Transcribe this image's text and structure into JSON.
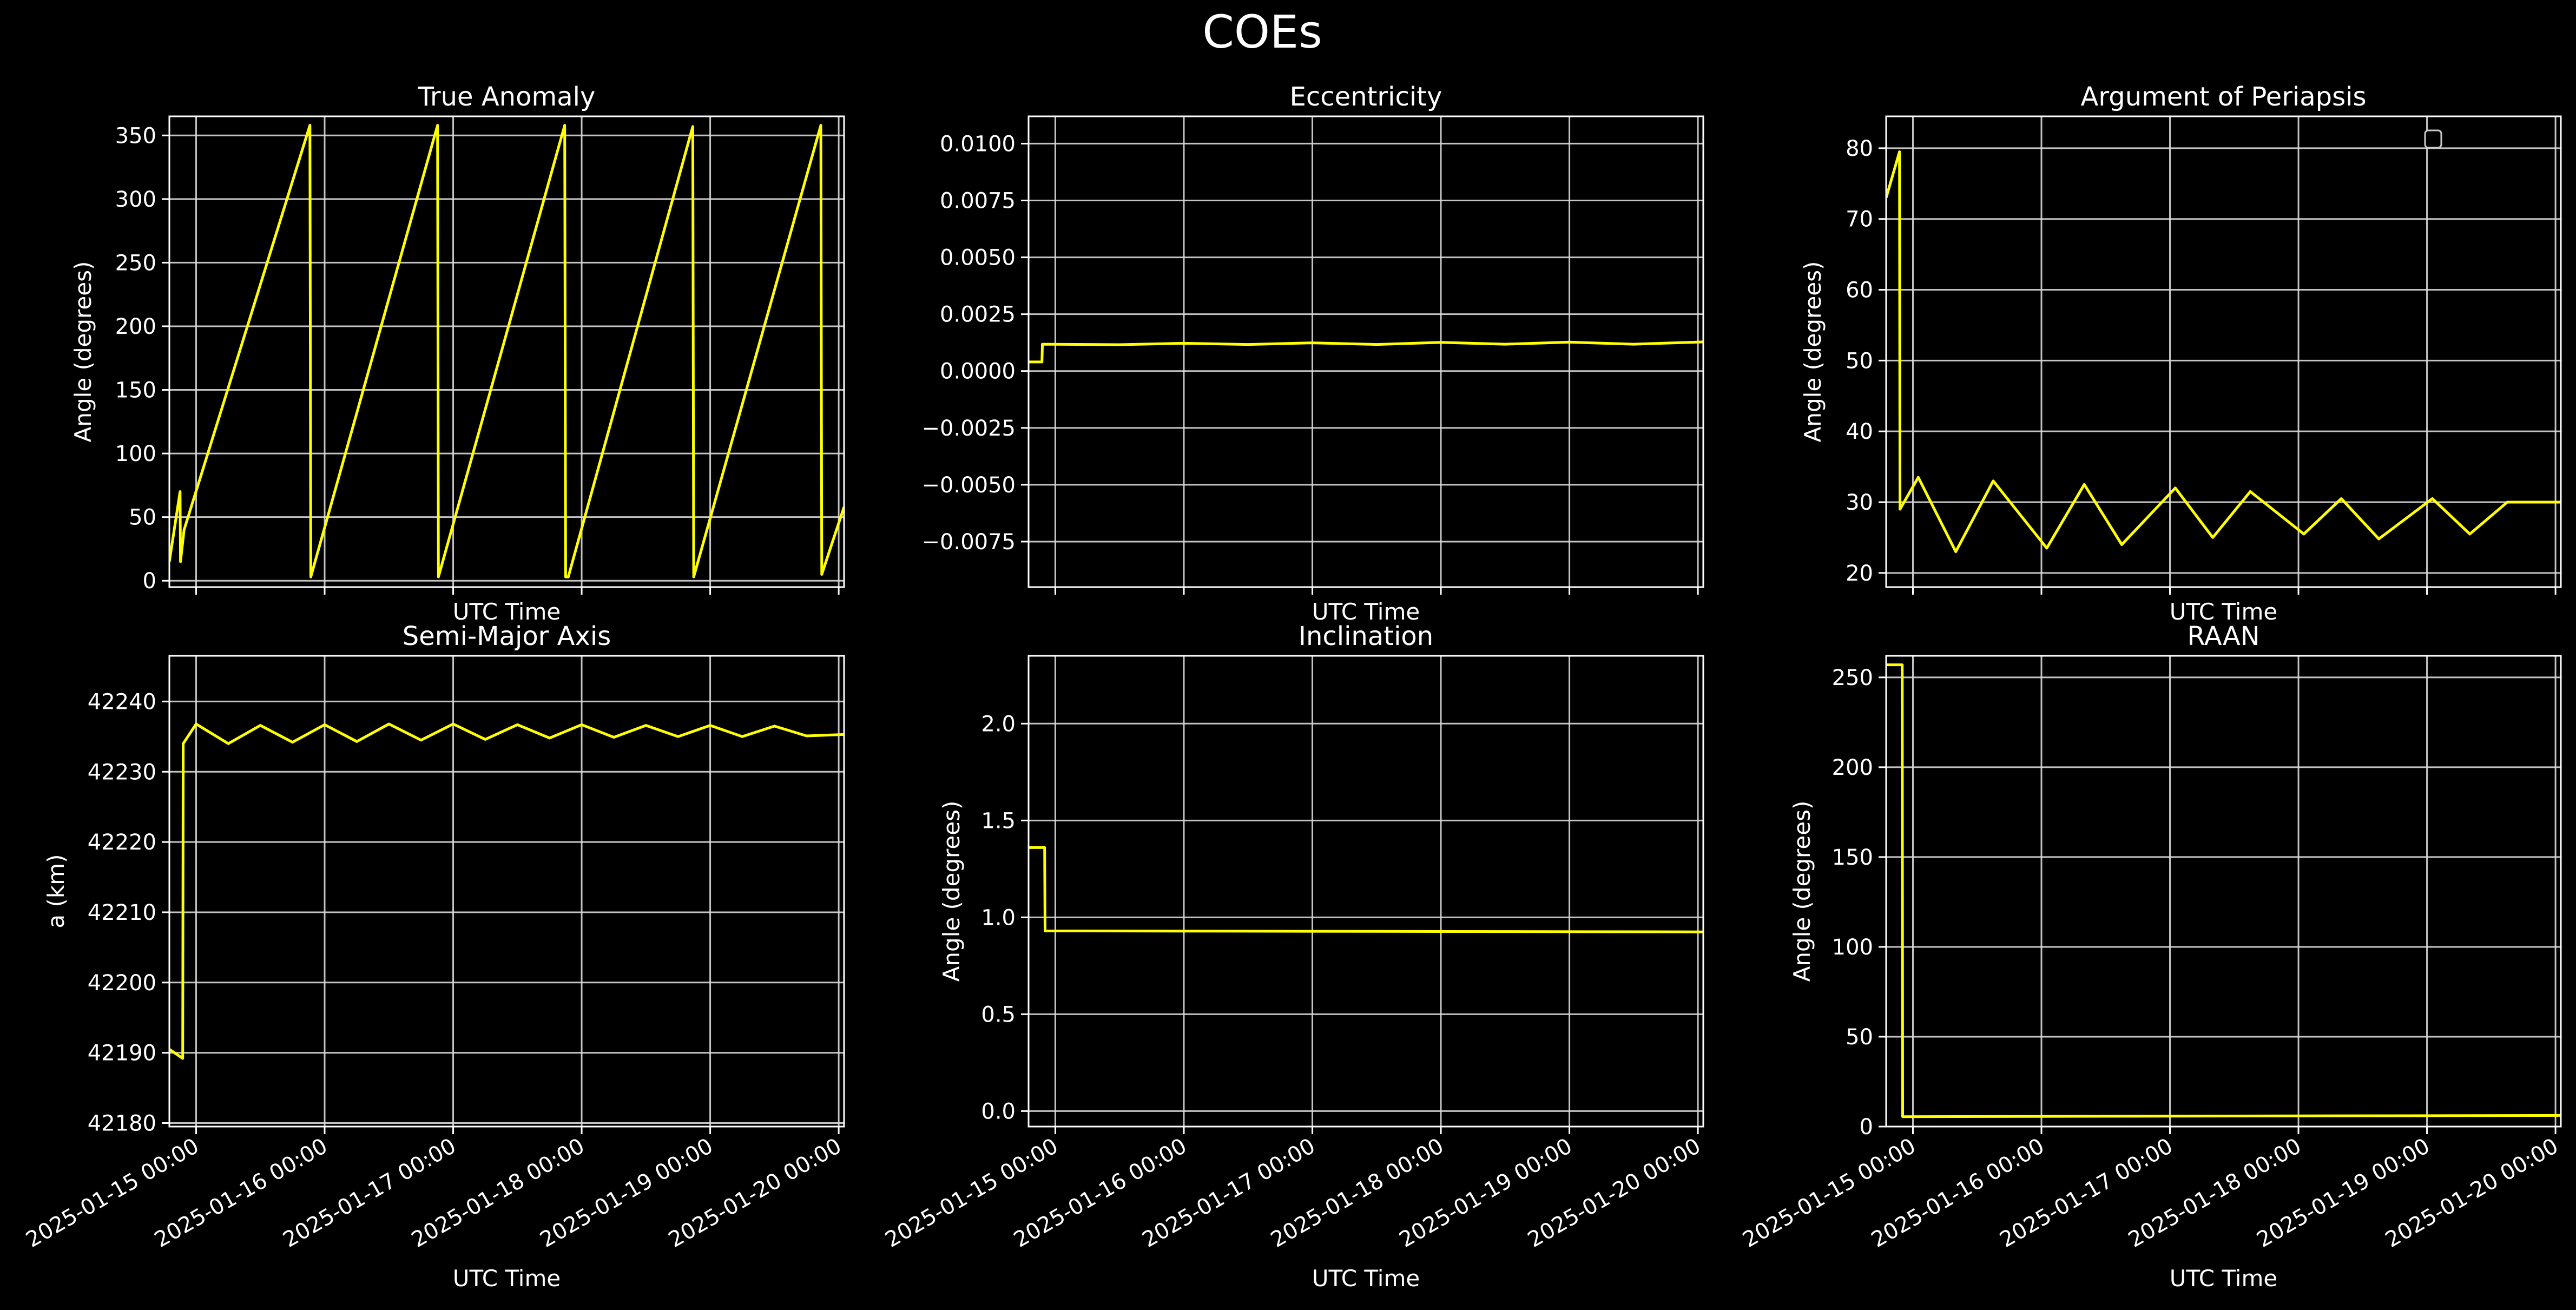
{
  "figure": {
    "title": "COEs"
  },
  "colors": {
    "background": "#000000",
    "series": "#ffff00",
    "text": "#ffffff",
    "grid": "#d9d9d9"
  },
  "chart_data": [
    {
      "id": "true-anomaly",
      "type": "line",
      "title": "True Anomaly",
      "xlabel": "UTC Time",
      "ylabel": "Angle (degrees)",
      "xlim": [
        "2025-01-14 19:00",
        "2025-01-20 01:00"
      ],
      "ylim": [
        -5,
        365
      ],
      "yticks": [
        0,
        50,
        100,
        150,
        200,
        250,
        300,
        350
      ],
      "yticklabels": [
        "0",
        "50",
        "100",
        "150",
        "200",
        "250",
        "300",
        "350"
      ],
      "xticks": [
        "2025-01-15 00:00",
        "2025-01-16 00:00",
        "2025-01-17 00:00",
        "2025-01-18 00:00",
        "2025-01-19 00:00",
        "2025-01-20 00:00"
      ],
      "xticklabels_shown": false,
      "grid": true,
      "series": [
        {
          "x": [
            "2025-01-14 19:00",
            "2025-01-14 21:00",
            "2025-01-14 21:05",
            "2025-01-14 21:45",
            "2025-01-15 21:15",
            "2025-01-15 21:25",
            "2025-01-16 21:05",
            "2025-01-16 21:15",
            "2025-01-17 20:50",
            "2025-01-17 21:00",
            "2025-01-17 21:30",
            "2025-01-18 20:45",
            "2025-01-18 20:55",
            "2025-01-19 20:40",
            "2025-01-19 20:50",
            "2025-01-20 01:00"
          ],
          "y": [
            15,
            70,
            15,
            40,
            358,
            3,
            358,
            3,
            358,
            3,
            3,
            357,
            3,
            358,
            5,
            58
          ]
        }
      ]
    },
    {
      "id": "eccentricity",
      "type": "line",
      "title": "Eccentricity",
      "xlabel": "UTC Time",
      "ylabel": "",
      "xlim": [
        "2025-01-14 19:00",
        "2025-01-20 01:00"
      ],
      "ylim": [
        -0.0095,
        0.0112
      ],
      "yticks": [
        -0.0075,
        -0.005,
        -0.0025,
        0.0,
        0.0025,
        0.005,
        0.0075,
        0.01
      ],
      "yticklabels": [
        "−0.0075",
        "−0.0050",
        "−0.0025",
        "0.0000",
        "0.0025",
        "0.0050",
        "0.0075",
        "0.0100"
      ],
      "xticks": [
        "2025-01-15 00:00",
        "2025-01-16 00:00",
        "2025-01-17 00:00",
        "2025-01-18 00:00",
        "2025-01-19 00:00",
        "2025-01-20 00:00"
      ],
      "xticklabels_shown": false,
      "grid": true,
      "series": [
        {
          "x": [
            "2025-01-14 19:00",
            "2025-01-14 21:30",
            "2025-01-14 21:35",
            "2025-01-15 12:00",
            "2025-01-16 00:00",
            "2025-01-16 12:00",
            "2025-01-17 00:00",
            "2025-01-17 12:00",
            "2025-01-18 00:00",
            "2025-01-18 12:00",
            "2025-01-19 00:00",
            "2025-01-19 12:00",
            "2025-01-20 01:00"
          ],
          "y": [
            0.0004,
            0.0004,
            0.00118,
            0.00116,
            0.00122,
            0.00117,
            0.00124,
            0.00117,
            0.00126,
            0.00118,
            0.00127,
            0.00118,
            0.00128
          ]
        }
      ]
    },
    {
      "id": "argument-of-periapsis",
      "type": "line",
      "title": "Argument of Periapsis",
      "xlabel": "UTC Time",
      "ylabel": "Angle (degrees)",
      "xlim": [
        "2025-01-14 19:00",
        "2025-01-20 01:00"
      ],
      "ylim": [
        18,
        84.5
      ],
      "yticks": [
        20,
        30,
        40,
        50,
        60,
        70,
        80
      ],
      "yticklabels": [
        "20",
        "30",
        "40",
        "50",
        "60",
        "70",
        "80"
      ],
      "xticks": [
        "2025-01-15 00:00",
        "2025-01-16 00:00",
        "2025-01-17 00:00",
        "2025-01-18 00:00",
        "2025-01-19 00:00",
        "2025-01-20 00:00"
      ],
      "xticklabels_shown": false,
      "grid": true,
      "legend": "top-right (empty)",
      "series": [
        {
          "x": [
            "2025-01-14 19:00",
            "2025-01-14 21:30",
            "2025-01-14 21:35",
            "2025-01-15 01:00",
            "2025-01-15 08:00",
            "2025-01-15 15:00",
            "2025-01-16 01:00",
            "2025-01-16 08:00",
            "2025-01-16 15:00",
            "2025-01-17 01:00",
            "2025-01-17 08:00",
            "2025-01-17 15:00",
            "2025-01-18 01:00",
            "2025-01-18 08:00",
            "2025-01-18 15:00",
            "2025-01-19 01:00",
            "2025-01-19 08:00",
            "2025-01-19 15:00",
            "2025-01-20 01:00"
          ],
          "y": [
            73,
            79.5,
            29,
            33.5,
            23,
            33,
            23.5,
            32.5,
            24,
            32,
            25,
            31.5,
            25.5,
            30.5,
            24.8,
            30.5,
            25.5,
            30,
            30
          ]
        }
      ]
    },
    {
      "id": "semi-major-axis",
      "type": "line",
      "title": "Semi-Major Axis",
      "xlabel": "UTC Time",
      "ylabel": "a (km)",
      "xlim": [
        "2025-01-14 19:00",
        "2025-01-20 01:00"
      ],
      "ylim": [
        42179.5,
        42246.5
      ],
      "yticks": [
        42180,
        42190,
        42200,
        42210,
        42220,
        42230,
        42240
      ],
      "yticklabels": [
        "42180",
        "42190",
        "42200",
        "42210",
        "42220",
        "42230",
        "42240"
      ],
      "xticks": [
        "2025-01-15 00:00",
        "2025-01-16 00:00",
        "2025-01-17 00:00",
        "2025-01-18 00:00",
        "2025-01-19 00:00",
        "2025-01-20 00:00"
      ],
      "xticklabels": [
        "2025-01-15 00:00",
        "2025-01-16 00:00",
        "2025-01-17 00:00",
        "2025-01-18 00:00",
        "2025-01-19 00:00",
        "2025-01-20 00:00"
      ],
      "xticklabels_shown": true,
      "grid": true,
      "series": [
        {
          "x": [
            "2025-01-14 19:00",
            "2025-01-14 21:30",
            "2025-01-14 21:35",
            "2025-01-15 00:00",
            "2025-01-15 06:00",
            "2025-01-15 12:00",
            "2025-01-15 18:00",
            "2025-01-16 00:00",
            "2025-01-16 06:00",
            "2025-01-16 12:00",
            "2025-01-16 18:00",
            "2025-01-17 00:00",
            "2025-01-17 06:00",
            "2025-01-17 12:00",
            "2025-01-17 18:00",
            "2025-01-18 00:00",
            "2025-01-18 06:00",
            "2025-01-18 12:00",
            "2025-01-18 18:00",
            "2025-01-19 00:00",
            "2025-01-19 06:00",
            "2025-01-19 12:00",
            "2025-01-19 18:00",
            "2025-01-20 01:00"
          ],
          "y": [
            42190.5,
            42189.2,
            42234,
            42236.8,
            42234,
            42236.6,
            42234.2,
            42236.7,
            42234.3,
            42236.8,
            42234.5,
            42236.8,
            42234.6,
            42236.7,
            42234.8,
            42236.7,
            42234.9,
            42236.6,
            42235,
            42236.6,
            42235,
            42236.5,
            42235.1,
            42235.3
          ]
        }
      ]
    },
    {
      "id": "inclination",
      "type": "line",
      "title": "Inclination",
      "xlabel": "UTC Time",
      "ylabel": "Angle (degrees)",
      "xlim": [
        "2025-01-14 19:00",
        "2025-01-20 01:00"
      ],
      "ylim": [
        -0.08,
        2.35
      ],
      "yticks": [
        0.0,
        0.5,
        1.0,
        1.5,
        2.0
      ],
      "yticklabels": [
        "0.0",
        "0.5",
        "1.0",
        "1.5",
        "2.0"
      ],
      "xticks": [
        "2025-01-15 00:00",
        "2025-01-16 00:00",
        "2025-01-17 00:00",
        "2025-01-18 00:00",
        "2025-01-19 00:00",
        "2025-01-20 00:00"
      ],
      "xticklabels": [
        "2025-01-15 00:00",
        "2025-01-16 00:00",
        "2025-01-17 00:00",
        "2025-01-18 00:00",
        "2025-01-19 00:00",
        "2025-01-20 00:00"
      ],
      "xticklabels_shown": true,
      "grid": true,
      "series": [
        {
          "x": [
            "2025-01-14 19:00",
            "2025-01-14 22:00",
            "2025-01-14 22:05",
            "2025-01-20 01:00"
          ],
          "y": [
            1.36,
            1.36,
            0.93,
            0.925
          ]
        }
      ]
    },
    {
      "id": "raan",
      "type": "line",
      "title": "RAAN",
      "xlabel": "UTC Time",
      "ylabel": "Angle (degrees)",
      "xlim": [
        "2025-01-14 19:00",
        "2025-01-20 01:00"
      ],
      "ylim": [
        0,
        262
      ],
      "yticks": [
        0,
        50,
        100,
        150,
        200,
        250
      ],
      "yticklabels": [
        "0",
        "50",
        "100",
        "150",
        "200",
        "250"
      ],
      "xticks": [
        "2025-01-15 00:00",
        "2025-01-16 00:00",
        "2025-01-17 00:00",
        "2025-01-18 00:00",
        "2025-01-19 00:00",
        "2025-01-20 00:00"
      ],
      "xticklabels": [
        "2025-01-15 00:00",
        "2025-01-16 00:00",
        "2025-01-17 00:00",
        "2025-01-18 00:00",
        "2025-01-19 00:00",
        "2025-01-20 00:00"
      ],
      "xticklabels_shown": true,
      "grid": true,
      "series": [
        {
          "x": [
            "2025-01-14 19:00",
            "2025-01-14 22:00",
            "2025-01-14 22:05",
            "2025-01-20 01:00"
          ],
          "y": [
            257,
            257,
            5.5,
            6.2
          ]
        }
      ]
    }
  ]
}
